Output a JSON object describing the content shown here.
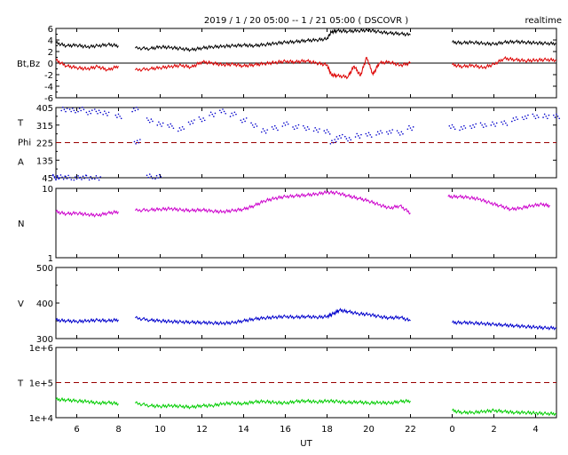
{
  "header": {
    "title": "2019 / 1 / 20   05:00 --  1 / 21   05:00 ( DSCOVR )",
    "badge": "realtime"
  },
  "x_axis": {
    "label": "UT",
    "ticks": [
      {
        "label": "6",
        "hours": 6
      },
      {
        "label": "8",
        "hours": 8
      },
      {
        "label": "10",
        "hours": 10
      },
      {
        "label": "12",
        "hours": 12
      },
      {
        "label": "14",
        "hours": 14
      },
      {
        "label": "16",
        "hours": 16
      },
      {
        "label": "18",
        "hours": 18
      },
      {
        "label": "20",
        "hours": 20
      },
      {
        "label": "22",
        "hours": 22
      },
      {
        "label": "0",
        "hours": 24
      },
      {
        "label": "2",
        "hours": 26
      },
      {
        "label": "4",
        "hours": 28
      }
    ],
    "range_hours": [
      5,
      29
    ]
  },
  "chart_data": [
    {
      "type": "line",
      "panel": "magnetic-field",
      "ylabel": "Bt,Bz",
      "ylim": [
        -6,
        6
      ],
      "yticks": [
        6,
        4,
        2,
        0,
        -2,
        -4,
        -6
      ],
      "reference_line": {
        "value": 0,
        "style": "solid",
        "color": "#000000"
      },
      "gaps": [
        [
          8.1,
          8.8
        ],
        [
          22.1,
          24.0
        ]
      ],
      "series": [
        {
          "key": "Bt",
          "color": "#000000",
          "x": [
            5.0,
            5.5,
            6.0,
            6.5,
            7.0,
            7.5,
            8.0,
            8.8,
            9.5,
            10.0,
            10.5,
            11.0,
            11.5,
            12.0,
            12.5,
            13.0,
            13.5,
            14.0,
            14.5,
            15.0,
            15.5,
            16.0,
            16.5,
            17.0,
            17.5,
            18.0,
            18.2,
            18.5,
            19.0,
            19.5,
            20.0,
            20.5,
            21.0,
            21.5,
            22.0,
            24.0,
            24.5,
            25.0,
            25.5,
            26.0,
            26.5,
            27.0,
            27.5,
            28.0,
            28.5,
            29.0
          ],
          "values": [
            3.5,
            3.0,
            3.1,
            2.8,
            3.0,
            3.2,
            3.0,
            2.6,
            2.5,
            2.8,
            2.7,
            2.5,
            2.3,
            2.6,
            2.8,
            2.9,
            3.0,
            3.1,
            3.0,
            3.2,
            3.4,
            3.6,
            3.7,
            3.9,
            4.0,
            4.2,
            5.4,
            5.6,
            5.5,
            5.6,
            5.7,
            5.4,
            5.2,
            5.1,
            4.9,
            3.6,
            3.5,
            3.6,
            3.4,
            3.3,
            3.6,
            3.7,
            3.6,
            3.5,
            3.4,
            3.4
          ]
        },
        {
          "key": "Bz",
          "color": "#dd0000",
          "x": [
            5.0,
            5.5,
            6.0,
            6.5,
            7.0,
            7.5,
            8.0,
            8.8,
            9.5,
            10.0,
            10.5,
            11.0,
            11.5,
            12.0,
            12.5,
            13.0,
            13.5,
            14.0,
            14.5,
            15.0,
            15.5,
            16.0,
            16.5,
            17.0,
            17.5,
            18.0,
            18.2,
            18.5,
            19.0,
            19.3,
            19.6,
            19.9,
            20.2,
            20.5,
            21.0,
            21.5,
            22.0,
            24.0,
            24.5,
            25.0,
            25.5,
            26.0,
            26.5,
            27.0,
            27.5,
            28.0,
            28.5,
            29.0
          ],
          "values": [
            0.5,
            -0.5,
            -0.8,
            -1.0,
            -0.6,
            -1.2,
            -0.5,
            -1.2,
            -1.0,
            -0.8,
            -0.6,
            -0.4,
            -0.7,
            0.2,
            0.0,
            -0.3,
            -0.2,
            -0.5,
            -0.3,
            -0.1,
            0.1,
            0.3,
            0.2,
            0.4,
            0.0,
            -0.3,
            -2.0,
            -2.2,
            -2.4,
            -0.5,
            -2.2,
            1.0,
            -2.0,
            0.0,
            0.2,
            -0.4,
            0.0,
            -0.3,
            -0.6,
            -0.4,
            -0.8,
            -0.2,
            0.8,
            0.6,
            0.4,
            0.5,
            0.6,
            0.5
          ]
        }
      ]
    },
    {
      "type": "scatter",
      "panel": "temperature-phi",
      "ylabel_lines": [
        "T",
        "Phi",
        "A"
      ],
      "ylim": [
        45,
        405
      ],
      "yticks": [
        405,
        315,
        225,
        135,
        45
      ],
      "reference_line": {
        "value": 225,
        "style": "dashed",
        "color": "#990000"
      },
      "gaps": [
        [
          22.1,
          24.0
        ]
      ],
      "series": [
        {
          "color": "#0000cc",
          "x": [
            5.0,
            5.4,
            5.8,
            6.2,
            6.6,
            7.0,
            7.4,
            8.0,
            8.8,
            8.9,
            9.5,
            10.0,
            10.5,
            11.0,
            11.5,
            12.0,
            12.5,
            13.0,
            13.5,
            14.0,
            14.5,
            15.0,
            15.5,
            16.0,
            16.5,
            17.0,
            17.5,
            18.0,
            18.3,
            18.6,
            19.0,
            19.5,
            20.0,
            20.5,
            21.0,
            21.5,
            22.0,
            24.0,
            24.5,
            25.0,
            25.5,
            26.0,
            26.5,
            27.0,
            27.5,
            28.0,
            28.5,
            29.0
          ],
          "values": [
            50,
            395,
            390,
            395,
            380,
            385,
            375,
            360,
            395,
            230,
            340,
            320,
            310,
            295,
            330,
            345,
            370,
            385,
            370,
            340,
            315,
            285,
            300,
            320,
            305,
            300,
            290,
            280,
            230,
            255,
            245,
            260,
            265,
            275,
            280,
            275,
            300,
            305,
            300,
            310,
            315,
            320,
            325,
            345,
            355,
            360,
            360,
            360
          ]
        },
        {
          "color": "#0000cc",
          "x": [
            5.0,
            5.3,
            5.6,
            6.0,
            6.3,
            6.6,
            7.0,
            9.5,
            9.9
          ],
          "values": [
            45,
            48,
            46,
            44,
            47,
            45,
            44,
            52,
            50
          ]
        }
      ]
    },
    {
      "type": "line",
      "panel": "density",
      "ylabel": "N",
      "log_scale": true,
      "ylim": [
        1,
        10
      ],
      "yticks": [
        10,
        1
      ],
      "gaps": [
        [
          8.1,
          8.8
        ],
        [
          22.1,
          23.7
        ]
      ],
      "series": [
        {
          "color": "#cc00cc",
          "x": [
            5.0,
            5.5,
            6.0,
            6.5,
            7.0,
            7.5,
            8.0,
            8.8,
            9.5,
            10.0,
            10.5,
            11.0,
            11.5,
            12.0,
            12.5,
            13.0,
            13.5,
            14.0,
            14.5,
            15.0,
            15.5,
            16.0,
            16.5,
            17.0,
            17.5,
            18.0,
            18.5,
            19.0,
            19.5,
            20.0,
            20.5,
            21.0,
            21.5,
            22.0,
            23.8,
            24.3,
            24.8,
            25.3,
            25.8,
            26.3,
            26.8,
            27.3,
            27.8,
            28.3,
            28.7
          ],
          "values": [
            4.6,
            4.3,
            4.4,
            4.2,
            4.1,
            4.4,
            4.6,
            4.8,
            4.9,
            5.0,
            5.1,
            4.9,
            4.8,
            4.9,
            4.7,
            4.6,
            4.8,
            5.0,
            5.6,
            6.6,
            7.2,
            7.6,
            7.8,
            8.0,
            8.3,
            8.8,
            8.6,
            7.8,
            7.2,
            6.6,
            5.8,
            5.2,
            5.6,
            4.4,
            7.6,
            7.6,
            7.4,
            7.0,
            6.2,
            5.6,
            5.0,
            5.2,
            5.6,
            5.9,
            5.6
          ]
        }
      ]
    },
    {
      "type": "line",
      "panel": "velocity",
      "ylabel": "V",
      "ylim": [
        300,
        500
      ],
      "yticks": [
        500,
        400,
        300
      ],
      "gaps": [
        [
          8.1,
          8.8
        ],
        [
          22.1,
          24.0
        ]
      ],
      "series": [
        {
          "color": "#0000cc",
          "x": [
            5.0,
            5.5,
            6.0,
            6.5,
            7.0,
            7.5,
            8.0,
            8.8,
            9.5,
            10.0,
            10.5,
            11.0,
            11.5,
            12.0,
            12.5,
            13.0,
            13.5,
            14.0,
            14.5,
            15.0,
            15.5,
            16.0,
            16.5,
            17.0,
            17.5,
            18.0,
            18.3,
            18.6,
            19.0,
            19.5,
            20.0,
            20.5,
            21.0,
            21.5,
            22.0,
            24.0,
            24.5,
            25.0,
            25.5,
            26.0,
            26.5,
            27.0,
            27.5,
            28.0,
            28.5,
            29.0
          ],
          "values": [
            352,
            350,
            348,
            350,
            352,
            350,
            353,
            358,
            352,
            350,
            348,
            347,
            346,
            345,
            344,
            343,
            345,
            350,
            355,
            358,
            360,
            362,
            360,
            362,
            360,
            362,
            370,
            380,
            376,
            370,
            368,
            362,
            358,
            360,
            350,
            345,
            345,
            344,
            342,
            340,
            338,
            336,
            334,
            332,
            330,
            330
          ]
        }
      ]
    },
    {
      "type": "line",
      "panel": "temperature",
      "ylabel": "T",
      "log_scale": true,
      "ylim": [
        10000,
        1000000
      ],
      "yticks": [
        {
          "label": "1e+6",
          "value": 1000000
        },
        {
          "label": "1e+5",
          "value": 100000
        },
        {
          "label": "1e+4",
          "value": 10000
        }
      ],
      "reference_line": {
        "value": 100000,
        "style": "dashed",
        "color": "#990000"
      },
      "gaps": [
        [
          8.1,
          8.8
        ],
        [
          22.1,
          24.0
        ]
      ],
      "series": [
        {
          "color": "#00cc00",
          "x": [
            5.0,
            5.5,
            6.0,
            6.5,
            7.0,
            7.5,
            8.0,
            8.8,
            9.5,
            10.0,
            10.5,
            11.0,
            11.5,
            12.0,
            12.5,
            13.0,
            13.5,
            14.0,
            14.5,
            15.0,
            15.5,
            16.0,
            16.5,
            17.0,
            17.5,
            18.0,
            18.5,
            19.0,
            19.5,
            20.0,
            20.5,
            21.0,
            21.5,
            22.0,
            24.0,
            24.5,
            25.0,
            25.5,
            26.0,
            26.5,
            27.0,
            27.5,
            28.0,
            28.5,
            29.0
          ],
          "values": [
            33000,
            32000,
            30000,
            29000,
            26000,
            27000,
            25000,
            26000,
            22000,
            21000,
            22000,
            21000,
            20000,
            22000,
            22000,
            25000,
            26000,
            25000,
            28000,
            29000,
            27000,
            26000,
            29000,
            30000,
            28000,
            30000,
            29000,
            27000,
            28000,
            26000,
            27000,
            26000,
            29000,
            30000,
            16000,
            14000,
            14000,
            15000,
            16000,
            15000,
            14000,
            14000,
            13500,
            13000,
            13000
          ]
        }
      ]
    }
  ]
}
